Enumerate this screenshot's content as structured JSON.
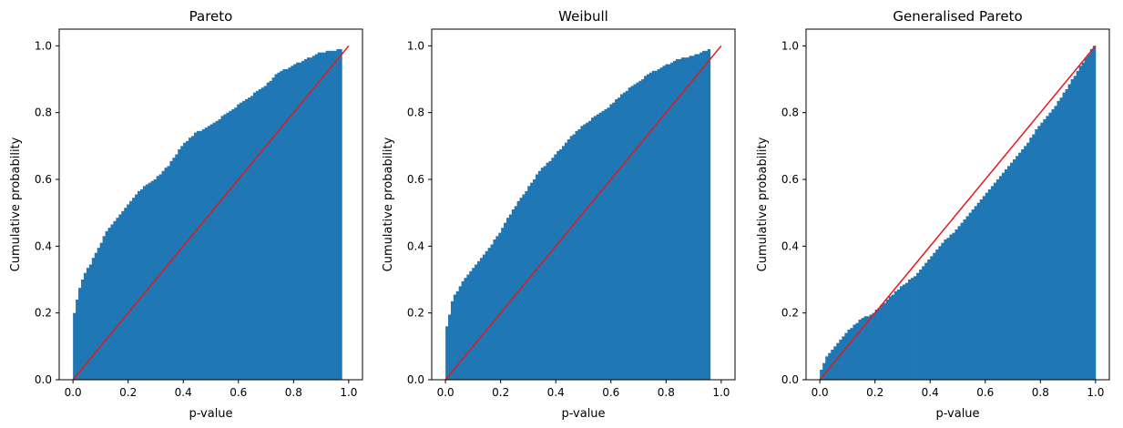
{
  "figure": {
    "background": "#ffffff"
  },
  "colors": {
    "histogram": "#1f77b4",
    "reference_line": "#e31a1c",
    "axes": "#000000"
  },
  "chart_data": [
    {
      "type": "bar",
      "subtype": "cumulative-histogram",
      "title": "Pareto",
      "xlabel": "p-value",
      "ylabel": "Cumulative probability",
      "xlim": [
        -0.05,
        1.05
      ],
      "ylim": [
        0,
        1.05
      ],
      "xticks": [
        0.0,
        0.2,
        0.4,
        0.6,
        0.8,
        1.0
      ],
      "xtick_labels": [
        "0.0",
        "0.2",
        "0.4",
        "0.6",
        "0.8",
        "1.0"
      ],
      "yticks": [
        0.0,
        0.2,
        0.4,
        0.6,
        0.8,
        1.0
      ],
      "ytick_labels": [
        "0.0",
        "0.2",
        "0.4",
        "0.6",
        "0.8",
        "1.0"
      ],
      "grid": false,
      "legend": "none",
      "bin_range": [
        0.0,
        0.975
      ],
      "cdf_points": [
        [
          0,
          0.15
        ],
        [
          0.01,
          0.2
        ],
        [
          0.02,
          0.24
        ],
        [
          0.03,
          0.28
        ],
        [
          0.05,
          0.32
        ],
        [
          0.07,
          0.35
        ],
        [
          0.1,
          0.4
        ],
        [
          0.13,
          0.45
        ],
        [
          0.15,
          0.47
        ],
        [
          0.2,
          0.52
        ],
        [
          0.25,
          0.57
        ],
        [
          0.3,
          0.6
        ],
        [
          0.35,
          0.64
        ],
        [
          0.4,
          0.7
        ],
        [
          0.45,
          0.74
        ],
        [
          0.5,
          0.76
        ],
        [
          0.55,
          0.79
        ],
        [
          0.6,
          0.82
        ],
        [
          0.65,
          0.85
        ],
        [
          0.7,
          0.88
        ],
        [
          0.75,
          0.92
        ],
        [
          0.8,
          0.94
        ],
        [
          0.85,
          0.96
        ],
        [
          0.9,
          0.98
        ],
        [
          0.975,
          0.99
        ]
      ],
      "reference_line": {
        "x": [
          0,
          1
        ],
        "y": [
          0,
          1
        ]
      }
    },
    {
      "type": "bar",
      "subtype": "cumulative-histogram",
      "title": "Weibull",
      "xlabel": "p-value",
      "ylabel": "Cumulative probability",
      "xlim": [
        -0.05,
        1.05
      ],
      "ylim": [
        0,
        1.05
      ],
      "xticks": [
        0.0,
        0.2,
        0.4,
        0.6,
        0.8,
        1.0
      ],
      "xtick_labels": [
        "0.0",
        "0.2",
        "0.4",
        "0.6",
        "0.8",
        "1.0"
      ],
      "yticks": [
        0.0,
        0.2,
        0.4,
        0.6,
        0.8,
        1.0
      ],
      "ytick_labels": [
        "0.0",
        "0.2",
        "0.4",
        "0.6",
        "0.8",
        "1.0"
      ],
      "grid": false,
      "legend": "none",
      "bin_range": [
        0.0,
        0.96
      ],
      "cdf_points": [
        [
          0,
          0.11
        ],
        [
          0.01,
          0.16
        ],
        [
          0.02,
          0.2
        ],
        [
          0.03,
          0.24
        ],
        [
          0.05,
          0.27
        ],
        [
          0.08,
          0.31
        ],
        [
          0.1,
          0.33
        ],
        [
          0.15,
          0.38
        ],
        [
          0.2,
          0.44
        ],
        [
          0.25,
          0.51
        ],
        [
          0.3,
          0.57
        ],
        [
          0.35,
          0.63
        ],
        [
          0.4,
          0.67
        ],
        [
          0.45,
          0.72
        ],
        [
          0.5,
          0.76
        ],
        [
          0.55,
          0.79
        ],
        [
          0.6,
          0.82
        ],
        [
          0.65,
          0.86
        ],
        [
          0.7,
          0.89
        ],
        [
          0.75,
          0.92
        ],
        [
          0.8,
          0.94
        ],
        [
          0.85,
          0.96
        ],
        [
          0.9,
          0.97
        ],
        [
          0.96,
          0.99
        ]
      ],
      "reference_line": {
        "x": [
          0,
          1
        ],
        "y": [
          0,
          1
        ]
      }
    },
    {
      "type": "bar",
      "subtype": "cumulative-histogram",
      "title": "Generalised Pareto",
      "xlabel": "p-value",
      "ylabel": "Cumulative probability",
      "xlim": [
        -0.05,
        1.05
      ],
      "ylim": [
        0,
        1.05
      ],
      "xticks": [
        0.0,
        0.2,
        0.4,
        0.6,
        0.8,
        1.0
      ],
      "xtick_labels": [
        "0.0",
        "0.2",
        "0.4",
        "0.6",
        "0.8",
        "1.0"
      ],
      "yticks": [
        0.0,
        0.2,
        0.4,
        0.6,
        0.8,
        1.0
      ],
      "ytick_labels": [
        "0.0",
        "0.2",
        "0.4",
        "0.6",
        "0.8",
        "1.0"
      ],
      "grid": false,
      "legend": "none",
      "bin_range": [
        0.0,
        1.0
      ],
      "cdf_points": [
        [
          0,
          0.01
        ],
        [
          0.01,
          0.03
        ],
        [
          0.02,
          0.05
        ],
        [
          0.03,
          0.07
        ],
        [
          0.05,
          0.09
        ],
        [
          0.08,
          0.12
        ],
        [
          0.1,
          0.14
        ],
        [
          0.15,
          0.18
        ],
        [
          0.2,
          0.2
        ],
        [
          0.25,
          0.24
        ],
        [
          0.3,
          0.28
        ],
        [
          0.35,
          0.31
        ],
        [
          0.4,
          0.36
        ],
        [
          0.45,
          0.41
        ],
        [
          0.5,
          0.45
        ],
        [
          0.55,
          0.5
        ],
        [
          0.6,
          0.55
        ],
        [
          0.65,
          0.6
        ],
        [
          0.7,
          0.65
        ],
        [
          0.75,
          0.7
        ],
        [
          0.8,
          0.76
        ],
        [
          0.85,
          0.81
        ],
        [
          0.9,
          0.87
        ],
        [
          0.95,
          0.94
        ],
        [
          1.0,
          1.0
        ]
      ],
      "reference_line": {
        "x": [
          0,
          1
        ],
        "y": [
          0,
          1
        ]
      }
    }
  ]
}
